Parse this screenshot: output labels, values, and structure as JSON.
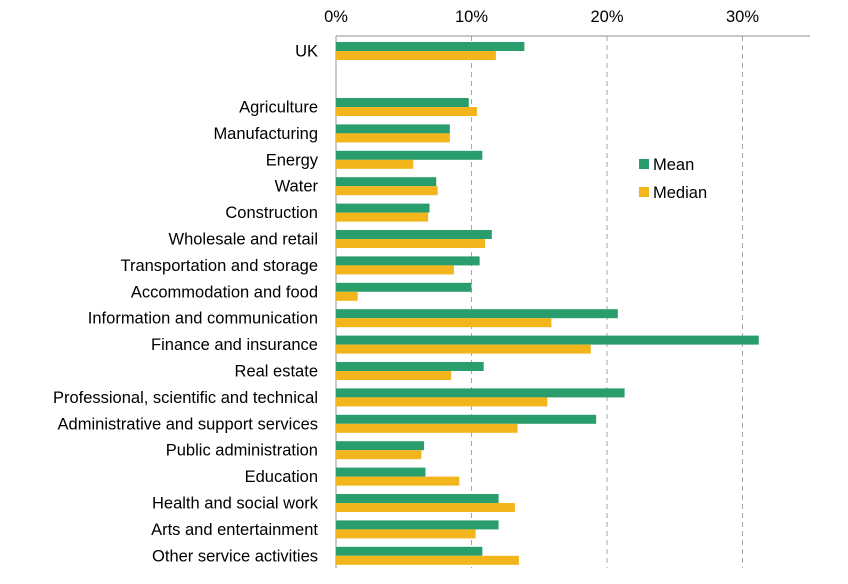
{
  "chart_data": {
    "type": "bar",
    "orientation": "horizontal",
    "title": "",
    "xlabel": "",
    "ylabel": "",
    "x_axis_position": "top",
    "xlim": [
      0,
      35
    ],
    "x_ticks": [
      0,
      10,
      20,
      30
    ],
    "x_tick_labels": [
      "0%",
      "10%",
      "20%",
      "30%"
    ],
    "grid": "vertical dashed",
    "legend": "right",
    "categories": [
      "UK",
      "Agriculture",
      "Manufacturing",
      "Energy",
      "Water",
      "Construction",
      "Wholesale and retail",
      "Transportation and storage",
      "Accommodation and food",
      "Information and communication",
      "Finance and insurance",
      "Real estate",
      "Professional, scientific and technical",
      "Administrative and support services",
      "Public administration",
      "Education",
      "Health and social work",
      "Arts and entertainment",
      "Other service activities"
    ],
    "series": [
      {
        "name": "Mean",
        "color": "#2a9d6c",
        "values": [
          13.9,
          9.8,
          8.4,
          10.8,
          7.4,
          6.9,
          11.5,
          10.6,
          10.0,
          20.8,
          31.2,
          10.9,
          21.3,
          19.2,
          6.5,
          6.6,
          12.0,
          12.0,
          10.8
        ]
      },
      {
        "name": "Median",
        "color": "#f2b51b",
        "values": [
          11.8,
          10.4,
          8.4,
          5.7,
          7.5,
          6.8,
          11.0,
          8.7,
          1.6,
          15.9,
          18.8,
          8.5,
          15.6,
          13.4,
          6.3,
          9.1,
          13.2,
          10.3,
          13.5
        ]
      }
    ]
  }
}
